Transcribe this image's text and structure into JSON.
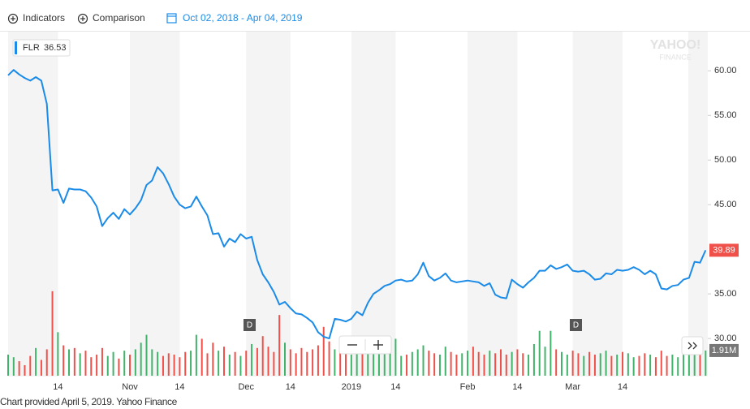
{
  "toolbar": {
    "indicators": "Indicators",
    "comparison": "Comparison",
    "date_range": "Oct 02, 2018 - Apr 04, 2019"
  },
  "tooltip": {
    "value": 36.53
  },
  "watermark": {
    "brand": "YAHOO!",
    "sub": "FINANCE"
  },
  "events": [
    "D",
    "D"
  ],
  "footer": "Chart provided April 5, 2019. Yahoo Finance",
  "chart_data": {
    "type": "line",
    "categories": [
      null,
      null,
      null,
      null,
      null,
      null,
      null,
      null,
      null,
      "14",
      null,
      null,
      null,
      null,
      null,
      null,
      null,
      null,
      null,
      null,
      null,
      null,
      "Nov",
      null,
      null,
      null,
      null,
      null,
      null,
      null,
      null,
      "14",
      null,
      null,
      null,
      null,
      null,
      null,
      null,
      null,
      null,
      null,
      null,
      "Dec",
      null,
      null,
      null,
      null,
      null,
      null,
      null,
      "14",
      null,
      null,
      null,
      null,
      null,
      null,
      null,
      null,
      null,
      null,
      "2019",
      null,
      null,
      null,
      null,
      null,
      null,
      null,
      "14",
      null,
      null,
      null,
      null,
      null,
      null,
      null,
      null,
      null,
      null,
      null,
      null,
      "Feb",
      null,
      null,
      null,
      null,
      null,
      null,
      null,
      null,
      "14",
      null,
      null,
      null,
      null,
      null,
      null,
      null,
      null,
      null,
      "Mar",
      null,
      null,
      null,
      null,
      null,
      null,
      null,
      null,
      "14",
      null,
      null,
      null,
      null,
      null,
      null,
      null,
      null,
      null,
      null,
      null,
      null,
      null,
      null,
      null
    ],
    "series": [
      {
        "name": "FLR",
        "color": "#1a8be8",
        "values": [
          59.5,
          60.1,
          59.6,
          59.2,
          58.9,
          59.3,
          58.9,
          56.3,
          46.6,
          46.7,
          45.2,
          46.8,
          46.7,
          46.7,
          46.5,
          45.8,
          44.8,
          42.6,
          43.5,
          44.1,
          43.4,
          44.5,
          43.9,
          44.6,
          45.5,
          47.2,
          47.7,
          49.2,
          48.5,
          47.3,
          45.9,
          45.0,
          44.6,
          44.8,
          45.9,
          44.8,
          43.8,
          41.7,
          41.8,
          40.3,
          41.2,
          40.8,
          41.7,
          41.2,
          41.4,
          38.8,
          37.2,
          36.3,
          35.2,
          33.8,
          34.1,
          33.4,
          32.8,
          32.7,
          32.3,
          31.8,
          30.7,
          30.2,
          30.0,
          32.2,
          32.1,
          31.9,
          32.2,
          33.0,
          32.6,
          34.0,
          35.0,
          35.4,
          35.9,
          36.1,
          36.5,
          36.6,
          36.4,
          36.5,
          37.2,
          38.5,
          37.0,
          36.5,
          36.8,
          37.3,
          36.5,
          36.3,
          36.4,
          36.5,
          36.4,
          36.3,
          35.9,
          36.2,
          34.9,
          34.6,
          34.5,
          36.6,
          36.1,
          35.7,
          36.3,
          36.8,
          37.6,
          37.6,
          38.2,
          37.8,
          38.0,
          38.3,
          37.6,
          37.5,
          37.6,
          37.2,
          36.6,
          36.7,
          37.3,
          37.2,
          37.7,
          37.6,
          37.7,
          38.0,
          37.7,
          37.2,
          37.6,
          37.2,
          35.6,
          35.5,
          35.9,
          36.0,
          36.6,
          36.8,
          38.6,
          38.5,
          39.89
        ],
        "label_color": "#f0504a"
      },
      {
        "type": "bar",
        "axis": "y2",
        "up_color": "#41b36a",
        "down_color": "#f0504a",
        "values": [
          1.6,
          1.4,
          1.1,
          0.8,
          1.5,
          2.1,
          1.2,
          2.0,
          6.4,
          3.3,
          2.3,
          2.0,
          2.1,
          1.7,
          1.9,
          1.4,
          1.6,
          2.1,
          1.5,
          1.8,
          1.3,
          1.9,
          1.6,
          2.0,
          2.5,
          3.1,
          2.0,
          1.8,
          1.5,
          1.7,
          1.6,
          1.4,
          1.8,
          1.9,
          3.1,
          2.8,
          1.7,
          2.5,
          1.9,
          2.2,
          1.6,
          1.8,
          1.5,
          1.9,
          2.4,
          2.1,
          3.0,
          2.2,
          1.8,
          4.6,
          2.5,
          2.0,
          1.7,
          2.1,
          1.8,
          2.0,
          2.3,
          3.7,
          2.6,
          2.0,
          1.9,
          2.0,
          1.6,
          1.8,
          1.9,
          2.0,
          2.1,
          1.8,
          1.9,
          2.2,
          2.8,
          1.5,
          1.6,
          1.8,
          2.0,
          2.3,
          1.9,
          1.7,
          1.6,
          2.2,
          1.8,
          1.6,
          1.7,
          1.9,
          2.2,
          1.8,
          1.6,
          1.9,
          1.7,
          2.0,
          1.6,
          1.8,
          2.0,
          1.7,
          1.6,
          2.4,
          3.4,
          2.2,
          3.4,
          2.0,
          1.8,
          1.6,
          1.9,
          1.7,
          1.5,
          1.8,
          1.6,
          1.7,
          1.9,
          1.5,
          1.6,
          1.8,
          1.7,
          1.4,
          1.5,
          1.7,
          1.6,
          1.4,
          1.9,
          1.5,
          1.6,
          1.4,
          1.7,
          1.8,
          2.0,
          1.6,
          1.91
        ],
        "value_labels": [
          null,
          null,
          null,
          null,
          null,
          null,
          null,
          null,
          null,
          null,
          null,
          null,
          null,
          null,
          null,
          null,
          null,
          null,
          null,
          null,
          null,
          null,
          null,
          null,
          null,
          null,
          null,
          null,
          null,
          null,
          null,
          null,
          null,
          null,
          null,
          null,
          null,
          null,
          null,
          null,
          null,
          null,
          null,
          null,
          null,
          null,
          null,
          null,
          null,
          null,
          null,
          null,
          null,
          null,
          null,
          null,
          null,
          null,
          null,
          null,
          null,
          null,
          null,
          null,
          null,
          null,
          null,
          null,
          null,
          null,
          null,
          null,
          null,
          null,
          null,
          null,
          null,
          null,
          null,
          null,
          null,
          null,
          null,
          null,
          null,
          null,
          null,
          null,
          null,
          null,
          null,
          null,
          null,
          null,
          null,
          null,
          null,
          null,
          null,
          null,
          null,
          null,
          null,
          null,
          null,
          null,
          null,
          null,
          null,
          null,
          null,
          null,
          null,
          null,
          null,
          null,
          null,
          null,
          null,
          null,
          null,
          null,
          null,
          null,
          null,
          null,
          "1.91M"
        ]
      }
    ],
    "ylim": [
      26.1,
      64.3
    ],
    "yticks": [
      {
        "value": 30,
        "label": "30.00"
      },
      {
        "value": 35,
        "label": "35.00"
      },
      {
        "value": 45,
        "label": "45.00"
      },
      {
        "value": 50,
        "label": "50.00"
      },
      {
        "value": 55,
        "label": "55.00"
      },
      {
        "value": 60,
        "label": "60.00"
      }
    ],
    "y2lim": [
      0,
      26
    ],
    "grid": false
  }
}
